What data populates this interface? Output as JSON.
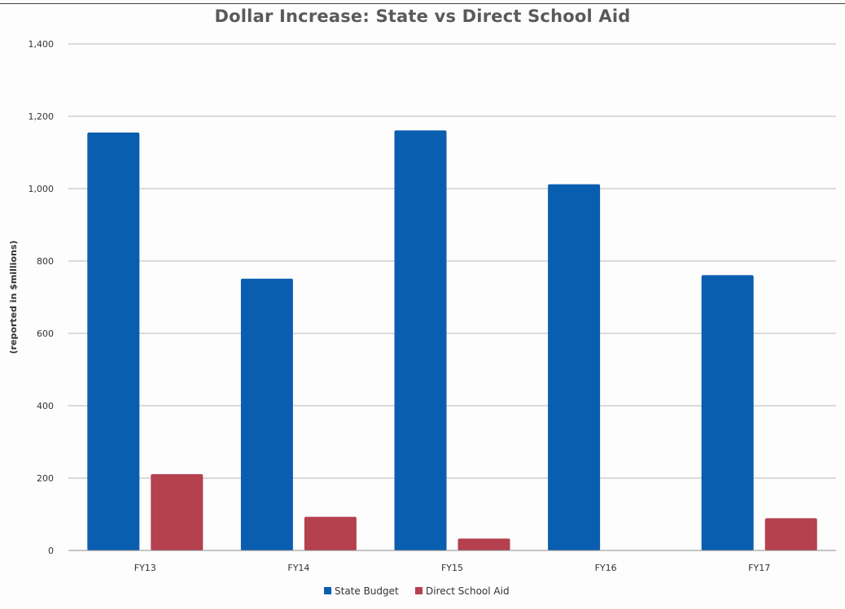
{
  "chart_data": {
    "type": "bar",
    "title": "Dollar Increase:  State vs Direct School Aid",
    "xlabel": "",
    "ylabel": "(reported in $millions)",
    "categories": [
      "FY13",
      "FY14",
      "FY15",
      "FY16",
      "FY17"
    ],
    "series": [
      {
        "name": "State Budget",
        "color": "#0a5eb0",
        "values": [
          1155,
          751,
          1161,
          1012,
          761
        ]
      },
      {
        "name": "Direct School Aid",
        "color": "#b5404e",
        "values": [
          211,
          93,
          33,
          1,
          89
        ]
      }
    ],
    "ylim": [
      0,
      1400
    ],
    "yticks": [
      0,
      200,
      400,
      600,
      800,
      1000,
      1200,
      1400
    ],
    "ytick_labels": [
      "0",
      "200",
      "400",
      "600",
      "800",
      "1,000",
      "1,200",
      "1,400"
    ],
    "grid": true,
    "legend": "bottom"
  }
}
